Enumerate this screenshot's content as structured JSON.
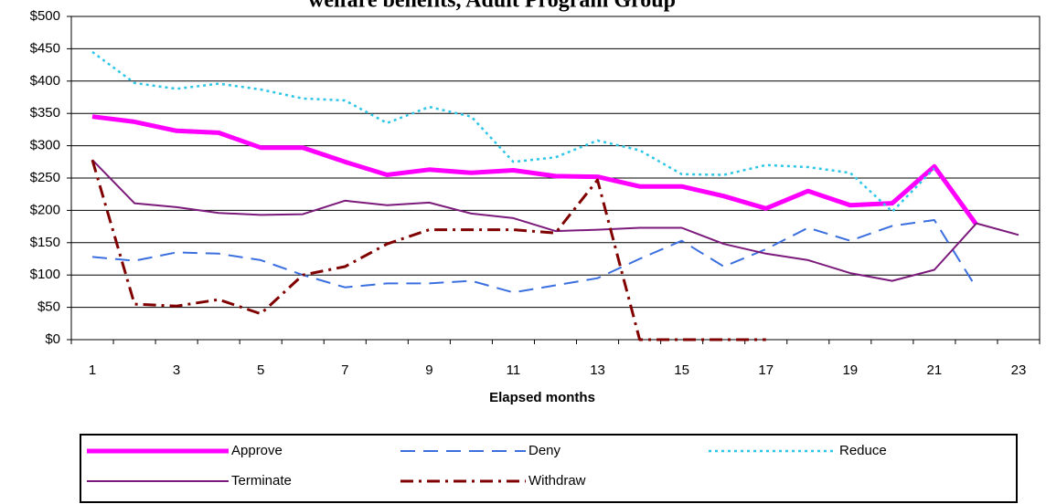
{
  "chart_data": {
    "type": "line",
    "title": "welfare benefits, Adult Program Group",
    "x_label": "Elapsed months",
    "categories": [
      "1",
      null,
      "3",
      null,
      "5",
      null,
      "7",
      null,
      "9",
      null,
      "11",
      null,
      "13",
      null,
      "15",
      null,
      "17",
      null,
      "19",
      null,
      "21",
      null,
      "23"
    ],
    "ylim": [
      0,
      500
    ],
    "yticks": [
      {
        "value": 0,
        "label": "$0"
      },
      {
        "value": 50,
        "label": "$50"
      },
      {
        "value": 100,
        "label": "$100"
      },
      {
        "value": 150,
        "label": "$150"
      },
      {
        "value": 200,
        "label": "$200"
      },
      {
        "value": 250,
        "label": "$250"
      },
      {
        "value": 300,
        "label": "$300"
      },
      {
        "value": 350,
        "label": "$350"
      },
      {
        "value": 400,
        "label": "$400"
      },
      {
        "value": 450,
        "label": "$450"
      },
      {
        "value": 500,
        "label": "$500"
      }
    ],
    "grid": true,
    "series": [
      {
        "name": "Approve",
        "color": "#ff00ff",
        "values": [
          345,
          337,
          323,
          320,
          297,
          297,
          275,
          255,
          263,
          258,
          262,
          253,
          252,
          237,
          237,
          222,
          203,
          230,
          208,
          211,
          268,
          178,
          null
        ]
      },
      {
        "name": "Deny",
        "color": "#3b6fe0",
        "values": [
          128,
          122,
          135,
          133,
          123,
          100,
          81,
          87,
          87,
          91,
          73,
          84,
          95,
          125,
          153,
          113,
          140,
          173,
          153,
          176,
          185,
          80,
          null
        ]
      },
      {
        "name": "Reduce",
        "color": "#2ec6e6",
        "values": [
          445,
          397,
          388,
          396,
          387,
          373,
          370,
          335,
          360,
          345,
          275,
          282,
          308,
          293,
          256,
          255,
          270,
          267,
          258,
          198,
          265,
          null,
          null
        ]
      },
      {
        "name": "Terminate",
        "color": "#7b1a7b",
        "values": [
          278,
          211,
          205,
          196,
          193,
          194,
          215,
          208,
          212,
          195,
          188,
          168,
          170,
          173,
          173,
          148,
          133,
          123,
          103,
          91,
          108,
          180,
          162
        ]
      },
      {
        "name": "Withdraw",
        "color": "#800000",
        "values": [
          278,
          55,
          52,
          62,
          40,
          100,
          113,
          148,
          170,
          170,
          170,
          165,
          247,
          0,
          0,
          0,
          0,
          null,
          null,
          null,
          null,
          null,
          null
        ]
      }
    ]
  }
}
